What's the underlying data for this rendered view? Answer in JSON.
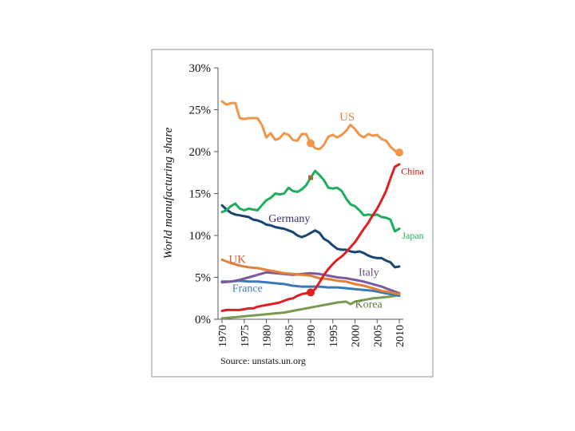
{
  "chart_data": {
    "type": "line",
    "ylabel": "World manufacturing share",
    "source": "Source: unstats.un.org",
    "xlim": [
      1970,
      2010
    ],
    "ylim": [
      0,
      30
    ],
    "xticks": [
      "1970",
      "1975",
      "1980",
      "1985",
      "1990",
      "1995",
      "2000",
      "2005",
      "2010"
    ],
    "yticks": [
      "0%",
      "5%",
      "10%",
      "15%",
      "20%",
      "25%",
      "30%"
    ],
    "series": [
      {
        "name": "US",
        "label": "US",
        "color": "#f0954a",
        "label_color": "#e0803a",
        "x": [
          1970,
          1971,
          1972,
          1973,
          1974,
          1975,
          1976,
          1977,
          1978,
          1979,
          1980,
          1981,
          1982,
          1983,
          1984,
          1985,
          1986,
          1987,
          1988,
          1989,
          1990,
          1991,
          1992,
          1993,
          1994,
          1995,
          1996,
          1997,
          1998,
          1999,
          2000,
          2001,
          2002,
          2003,
          2004,
          2005,
          2006,
          2007,
          2008,
          2009,
          2010
        ],
        "values": [
          26,
          25.6,
          25.8,
          25.8,
          24,
          23.9,
          24,
          24,
          24,
          23.2,
          21.7,
          22.2,
          21.4,
          21.6,
          22.2,
          22,
          21.4,
          21.3,
          22.1,
          22.1,
          21,
          20.4,
          20.3,
          20.8,
          21.8,
          22,
          21.7,
          22,
          22.5,
          23.2,
          22.7,
          22,
          21.7,
          22.1,
          21.9,
          22,
          21.5,
          21.3,
          20.6,
          20.1,
          19.9
        ]
      },
      {
        "name": "China",
        "label": "China",
        "color": "#e02020",
        "label_color": "#d01010",
        "x": [
          1970,
          1971,
          1972,
          1973,
          1974,
          1975,
          1976,
          1977,
          1978,
          1979,
          1980,
          1981,
          1982,
          1983,
          1984,
          1985,
          1986,
          1987,
          1988,
          1989,
          1990,
          1991,
          1992,
          1993,
          1994,
          1995,
          1996,
          1997,
          1998,
          1999,
          2000,
          2001,
          2002,
          2003,
          2004,
          2005,
          2006,
          2007,
          2008,
          2009,
          2010
        ],
        "values": [
          1,
          1.1,
          1.1,
          1.1,
          1.1,
          1.2,
          1.3,
          1.3,
          1.5,
          1.6,
          1.7,
          1.8,
          1.9,
          2,
          2.2,
          2.4,
          2.5,
          2.8,
          3,
          3.1,
          3.2,
          3.6,
          4.4,
          5.3,
          6,
          6.6,
          7.1,
          7.5,
          8,
          8.6,
          9.2,
          10,
          10.8,
          11.5,
          12.4,
          13.2,
          14.2,
          15.3,
          16.8,
          18.2,
          18.5
        ]
      },
      {
        "name": "Japan",
        "label": "Japan",
        "color": "#1fae5c",
        "label_color": "#1fae5c",
        "x": [
          1970,
          1971,
          1972,
          1973,
          1974,
          1975,
          1976,
          1977,
          1978,
          1979,
          1980,
          1981,
          1982,
          1983,
          1984,
          1985,
          1986,
          1987,
          1988,
          1989,
          1990,
          1991,
          1992,
          1993,
          1994,
          1995,
          1996,
          1997,
          1998,
          1999,
          2000,
          2001,
          2002,
          2003,
          2004,
          2005,
          2006,
          2007,
          2008,
          2009,
          2010
        ],
        "values": [
          12.8,
          13,
          13.5,
          13.8,
          13.2,
          13,
          13.2,
          13.1,
          13,
          13.6,
          14.2,
          14.5,
          15,
          14.9,
          15,
          15.7,
          15.3,
          15.2,
          15.5,
          16,
          16.9,
          17.7,
          17.2,
          16.6,
          15.7,
          15.6,
          15.7,
          15.3,
          14.4,
          13.7,
          13.5,
          13,
          12.4,
          12.5,
          12.4,
          12.5,
          12.2,
          12.1,
          11.9,
          10.5,
          10.8
        ]
      },
      {
        "name": "Germany",
        "label": "Germany",
        "color": "#17466e",
        "label_color": "#3b2e6e",
        "x": [
          1970,
          1971,
          1972,
          1973,
          1974,
          1975,
          1976,
          1977,
          1978,
          1979,
          1980,
          1981,
          1982,
          1983,
          1984,
          1985,
          1986,
          1987,
          1988,
          1989,
          1990,
          1991,
          1992,
          1993,
          1994,
          1995,
          1996,
          1997,
          1998,
          1999,
          2000,
          2001,
          2002,
          2003,
          2004,
          2005,
          2006,
          2007,
          2008,
          2009,
          2010
        ],
        "values": [
          13.6,
          13.1,
          12.7,
          12.5,
          12.4,
          12.3,
          12.2,
          11.9,
          11.8,
          11.6,
          11.3,
          11.2,
          11,
          10.9,
          10.8,
          10.6,
          10.4,
          10,
          9.8,
          10,
          10.3,
          10.6,
          10.3,
          9.6,
          9.3,
          8.8,
          8.4,
          8.3,
          8.3,
          8.1,
          8,
          8.1,
          7.9,
          7.6,
          7.4,
          7.3,
          7.3,
          7,
          6.8,
          6.2,
          6.3
        ]
      },
      {
        "name": "UK",
        "label": "UK",
        "color": "#e0803a",
        "label_color": "#d0603a",
        "x": [
          1970,
          1972,
          1974,
          1976,
          1978,
          1980,
          1982,
          1984,
          1986,
          1988,
          1990,
          1992,
          1994,
          1996,
          1998,
          2000,
          2002,
          2004,
          2006,
          2008,
          2010
        ],
        "values": [
          7.1,
          6.7,
          6.4,
          6.2,
          6.1,
          5.9,
          5.7,
          5.5,
          5.4,
          5.3,
          5.2,
          4.9,
          4.8,
          4.6,
          4.5,
          4.2,
          4,
          3.7,
          3.4,
          3.2,
          3
        ]
      },
      {
        "name": "Italy",
        "label": "Italy",
        "color": "#7a5a9a",
        "label_color": "#6a4a8a",
        "x": [
          1970,
          1972,
          1974,
          1976,
          1978,
          1980,
          1982,
          1984,
          1986,
          1988,
          1990,
          1992,
          1994,
          1996,
          1998,
          2000,
          2002,
          2004,
          2006,
          2008,
          2010
        ],
        "values": [
          4.4,
          4.5,
          4.7,
          5,
          5.3,
          5.6,
          5.5,
          5.4,
          5.3,
          5.4,
          5.5,
          5.4,
          5.2,
          5,
          4.9,
          4.7,
          4.5,
          4.2,
          3.9,
          3.5,
          3.1
        ]
      },
      {
        "name": "France",
        "label": "France",
        "color": "#3a7ab8",
        "label_color": "#3a7ab8",
        "x": [
          1970,
          1972,
          1974,
          1976,
          1978,
          1980,
          1982,
          1984,
          1986,
          1988,
          1990,
          1992,
          1994,
          1996,
          1998,
          2000,
          2002,
          2004,
          2006,
          2008,
          2010
        ],
        "values": [
          4.5,
          4.5,
          4.6,
          4.5,
          4.5,
          4.4,
          4.3,
          4.2,
          4,
          3.9,
          3.9,
          3.9,
          3.8,
          3.8,
          3.7,
          3.6,
          3.5,
          3.4,
          3.2,
          3,
          2.8
        ]
      },
      {
        "name": "Korea",
        "label": "Korea",
        "color": "#7a9a50",
        "label_color": "#5a7a3a",
        "x": [
          1970,
          1972,
          1974,
          1976,
          1978,
          1980,
          1982,
          1984,
          1986,
          1988,
          1990,
          1992,
          1994,
          1996,
          1998,
          1999,
          2000,
          2002,
          2004,
          2006,
          2008,
          2010
        ],
        "values": [
          0.1,
          0.2,
          0.3,
          0.4,
          0.5,
          0.6,
          0.7,
          0.8,
          1,
          1.2,
          1.4,
          1.6,
          1.8,
          2,
          2.1,
          1.8,
          2.1,
          2.3,
          2.5,
          2.6,
          2.7,
          2.9
        ]
      }
    ],
    "markers": [
      {
        "name": "us-2010-marker",
        "series": "US",
        "shape": "circle",
        "x": 2010,
        "y": 19.9,
        "color": "#f0954a"
      },
      {
        "name": "us-1990-marker",
        "series": "US",
        "shape": "circle",
        "x": 1990,
        "y": 21,
        "color": "#f0954a"
      },
      {
        "name": "china-1990-marker",
        "series": "China",
        "shape": "circle",
        "x": 1990,
        "y": 3.2,
        "color": "#e02020"
      },
      {
        "name": "japan-1990-marker",
        "series": "Japan",
        "shape": "square",
        "x": 1990,
        "y": 16.9,
        "color": "#8a7a3a"
      }
    ],
    "labels": [
      {
        "series": "US",
        "x": 1996.5,
        "y": 23.7,
        "size": 15
      },
      {
        "series": "China",
        "x": 2010.4,
        "y": 17.3,
        "size": 12
      },
      {
        "series": "Japan",
        "x": 2010.6,
        "y": 9.6,
        "size": 12
      },
      {
        "series": "Germany",
        "x": 1980.5,
        "y": 11.6,
        "size": 14
      },
      {
        "series": "UK",
        "x": 1971.5,
        "y": 6.7,
        "size": 15
      },
      {
        "series": "Italy",
        "x": 2000.8,
        "y": 5.2,
        "size": 14
      },
      {
        "series": "France",
        "x": 1972.3,
        "y": 3.3,
        "size": 14
      },
      {
        "series": "Korea",
        "x": 2000,
        "y": 1.4,
        "size": 14
      }
    ]
  }
}
